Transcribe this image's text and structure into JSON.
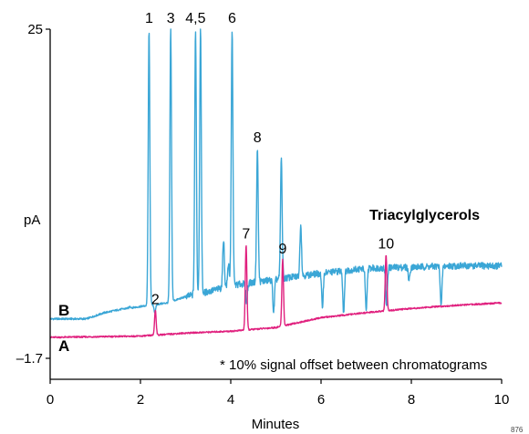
{
  "chart_data": {
    "type": "line",
    "xlabel": "Minutes",
    "ylabel": "pA",
    "xlim": [
      0,
      10
    ],
    "ylim": [
      -1.7,
      25
    ],
    "x_ticks": [
      "0",
      "2",
      "4",
      "6",
      "8",
      "10"
    ],
    "y_ticks": [
      "25",
      "–1.7"
    ],
    "grid": false,
    "annotation": "Triacylglycerols",
    "footnote": "* 10% signal offset between chromatograms",
    "figure_code": "876",
    "series": [
      {
        "name": "B",
        "color": "#3aa6d6",
        "baseline": [
          [
            0,
            1.5
          ],
          [
            0.8,
            1.5
          ],
          [
            1.2,
            2.0
          ],
          [
            1.6,
            2.3
          ],
          [
            2.0,
            2.5
          ],
          [
            2.6,
            2.8
          ],
          [
            3.0,
            3.3
          ],
          [
            3.5,
            3.7
          ],
          [
            4.0,
            4.2
          ],
          [
            5.0,
            4.7
          ],
          [
            6.0,
            5.2
          ],
          [
            7.0,
            5.6
          ],
          [
            8.0,
            5.7
          ],
          [
            9.0,
            5.8
          ],
          [
            10,
            5.8
          ]
        ],
        "peaks": [
          {
            "x": 1.77,
            "h": 2.5
          },
          {
            "x": 2.19,
            "h": 25,
            "label": "1"
          },
          {
            "x": 2.32,
            "h": 2.0
          },
          {
            "x": 2.67,
            "h": 25,
            "label": "3"
          },
          {
            "x": 3.22,
            "h": 25,
            "label": "4,5"
          },
          {
            "x": 3.33,
            "h": 25
          },
          {
            "x": 3.84,
            "h": 8.0
          },
          {
            "x": 3.95,
            "h": 6.0
          },
          {
            "x": 4.03,
            "h": 25,
            "label": "6"
          },
          {
            "x": 4.35,
            "h": 2.8
          },
          {
            "x": 4.59,
            "h": 15.3,
            "label": "8"
          },
          {
            "x": 4.95,
            "h": 2.0
          },
          {
            "x": 5.12,
            "h": 14.6
          },
          {
            "x": 5.55,
            "h": 9.2
          },
          {
            "x": 6.03,
            "h": 2.5
          },
          {
            "x": 6.5,
            "h": 2.0
          },
          {
            "x": 7.0,
            "h": 2.0
          },
          {
            "x": 7.45,
            "h": 2.7
          },
          {
            "x": 7.95,
            "h": 4.6
          },
          {
            "x": 8.66,
            "h": 2.5
          }
        ]
      },
      {
        "name": "A",
        "color": "#e0207e",
        "baseline": [
          [
            0,
            0.0
          ],
          [
            2.0,
            0.1
          ],
          [
            3.0,
            0.35
          ],
          [
            4.0,
            0.5
          ],
          [
            5.0,
            0.8
          ],
          [
            6.0,
            1.6
          ],
          [
            7.0,
            2.0
          ],
          [
            8.0,
            2.35
          ],
          [
            9.0,
            2.6
          ],
          [
            10,
            2.8
          ]
        ],
        "peaks": [
          {
            "x": 2.33,
            "h": 2.2,
            "label": "2"
          },
          {
            "x": 4.34,
            "h": 7.5,
            "label": "7"
          },
          {
            "x": 5.15,
            "h": 6.3,
            "label": "9"
          },
          {
            "x": 7.44,
            "h": 6.7,
            "label": "10"
          }
        ]
      }
    ]
  }
}
